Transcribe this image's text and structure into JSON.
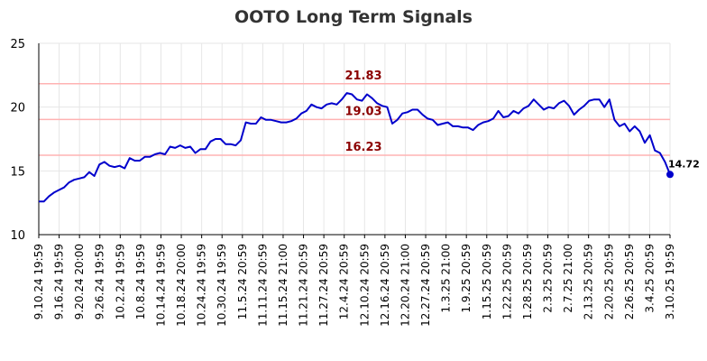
{
  "chart_data": {
    "type": "line",
    "title": "OOTO Long Term Signals",
    "ylim": [
      10,
      25
    ],
    "yticks": [
      10,
      15,
      20,
      25
    ],
    "grid": true,
    "line_color": "#0000cc",
    "reference_color": "#ffb3b3",
    "reference_label_color": "#8b0000",
    "x_tick_labels": [
      "9.10.24 19:59",
      "9.16.24 19:59",
      "9.20.24 20:00",
      "9.26.24 19:59",
      "10.2.24 19:59",
      "10.8.24 19:59",
      "10.14.24 19:59",
      "10.18.24 20:00",
      "10.24.24 19:59",
      "10.30.24 19:59",
      "11.5.24 20:59",
      "11.11.24 20:59",
      "11.15.24 21:00",
      "11.21.24 20:59",
      "11.27.24 20:59",
      "12.4.24 20:59",
      "12.10.24 20:59",
      "12.16.24 20:59",
      "12.20.24 21:00",
      "12.27.24 20:59",
      "1.3.25 21:00",
      "1.9.25 20:59",
      "1.15.25 20:59",
      "1.22.25 20:59",
      "1.28.25 20:59",
      "2.3.25 20:59",
      "2.7.25 21:00",
      "2.13.25 20:59",
      "2.20.25 20:59",
      "2.26.25 20:59",
      "3.4.25 20:59",
      "3.10.25 19:59"
    ],
    "reference_lines": [
      {
        "value": 21.83,
        "label": "21.83"
      },
      {
        "value": 19.03,
        "label": "19.03"
      },
      {
        "value": 16.23,
        "label": "16.23"
      }
    ],
    "series": [
      {
        "values": [
          12.6,
          12.6,
          13.0,
          13.3,
          13.5,
          13.7,
          14.1,
          14.3,
          14.4,
          14.5,
          14.9,
          14.6,
          15.5,
          15.7,
          15.4,
          15.3,
          15.4,
          15.2,
          16.0,
          15.8,
          15.8,
          16.1,
          16.1,
          16.3,
          16.4,
          16.3,
          16.9,
          16.8,
          17.0,
          16.8,
          16.9,
          16.4,
          16.7,
          16.7,
          17.3,
          17.5,
          17.5,
          17.1,
          17.1,
          17.0,
          17.4,
          18.8,
          18.7,
          18.7,
          19.2,
          19.0,
          19.0,
          18.9,
          18.8,
          18.8,
          18.9,
          19.1,
          19.5,
          19.7,
          20.2,
          20.0,
          19.9,
          20.2,
          20.3,
          20.2,
          20.6,
          21.1,
          21.0,
          20.6,
          20.5,
          21.0,
          20.7,
          20.3,
          20.1,
          20.0,
          18.7,
          19.0,
          19.5,
          19.6,
          19.8,
          19.8,
          19.4,
          19.1,
          19.0,
          18.6,
          18.7,
          18.8,
          18.5,
          18.5,
          18.4,
          18.4,
          18.2,
          18.6,
          18.8,
          18.9,
          19.1,
          19.7,
          19.2,
          19.3,
          19.7,
          19.5,
          19.9,
          20.1,
          20.6,
          20.2,
          19.8,
          20.0,
          19.9,
          20.3,
          20.5,
          20.1,
          19.4,
          19.8,
          20.1,
          20.5,
          20.6,
          20.6,
          20.0,
          20.6,
          19.0,
          18.5,
          18.7,
          18.1,
          18.5,
          18.1,
          17.2,
          17.8,
          16.6,
          16.4,
          15.7,
          14.72
        ],
        "last_label": "14.72"
      }
    ]
  }
}
